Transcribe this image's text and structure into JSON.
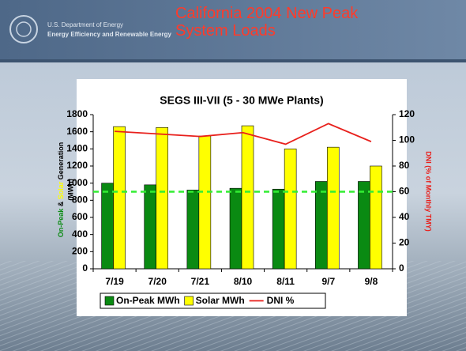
{
  "header": {
    "org_lines": [
      "U.S. Department of Energy",
      "Energy Efficiency and Renewable Energy"
    ],
    "title": "California 2004 New Peak System Loads"
  },
  "chart_data": {
    "type": "bar",
    "title": "SEGS III-VII (5 - 30 MWe Plants)",
    "categories": [
      "7/19",
      "7/20",
      "7/21",
      "8/10",
      "8/11",
      "9/7",
      "9/8"
    ],
    "series": [
      {
        "name": "On-Peak MWh",
        "type": "bar",
        "color": "#0a8a12",
        "values": [
          1000,
          980,
          920,
          940,
          930,
          1020,
          1020
        ]
      },
      {
        "name": "Solar MWh",
        "type": "bar",
        "color": "#ffff00",
        "values": [
          1660,
          1650,
          1550,
          1670,
          1400,
          1420,
          1200
        ]
      },
      {
        "name": "DNI %",
        "type": "line",
        "axis": "y2",
        "color": "#e8201c",
        "values": [
          107,
          105,
          103,
          106,
          97,
          113,
          99
        ]
      }
    ],
    "reference_line": {
      "axis": "y2",
      "value": 60,
      "color": "#33ee33"
    },
    "y_label_parts": [
      {
        "text": "On-Peak",
        "color": "#0a8a12"
      },
      {
        "text": " & ",
        "color": "#000000"
      },
      {
        "text": "Solar",
        "color": "#ffff00"
      },
      {
        "text": " Generation",
        "color": "#000000"
      }
    ],
    "y_label_unit": "(MWh)",
    "y2_label": "DNI (% of Monthly TMY)",
    "y2_label_color": "#e8201c",
    "ylim": [
      0,
      1800
    ],
    "yticks": [
      0,
      200,
      400,
      600,
      800,
      1000,
      1200,
      1400,
      1600,
      1800
    ],
    "y2lim": [
      0,
      120
    ],
    "y2ticks": [
      0,
      20,
      40,
      60,
      80,
      100,
      120
    ],
    "legend": "bottom"
  }
}
